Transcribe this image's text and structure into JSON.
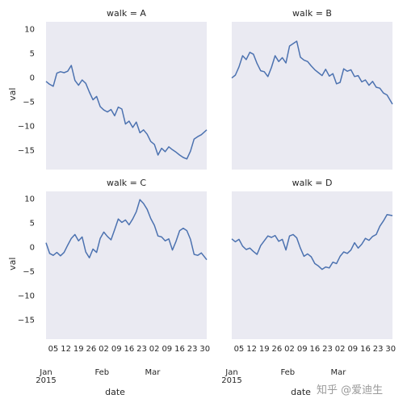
{
  "chart_data": {
    "type": "line",
    "facet_column": "walk",
    "xlabel": "date",
    "ylabel": "val",
    "ylim": [
      -19,
      11.5
    ],
    "y_ticks": [
      10,
      5,
      0,
      -5,
      -10,
      -15
    ],
    "x_range": [
      "2015-01-01",
      "2015-03-31"
    ],
    "x_day_ticks": [
      {
        "date": "2015-01-05",
        "label": "05"
      },
      {
        "date": "2015-01-12",
        "label": "12"
      },
      {
        "date": "2015-01-19",
        "label": "19"
      },
      {
        "date": "2015-01-26",
        "label": "26"
      },
      {
        "date": "2015-02-02",
        "label": "02"
      },
      {
        "date": "2015-02-09",
        "label": "09"
      },
      {
        "date": "2015-02-16",
        "label": "16"
      },
      {
        "date": "2015-02-23",
        "label": "23"
      },
      {
        "date": "2015-03-02",
        "label": "02"
      },
      {
        "date": "2015-03-09",
        "label": "09"
      },
      {
        "date": "2015-03-16",
        "label": "16"
      },
      {
        "date": "2015-03-23",
        "label": "23"
      },
      {
        "date": "2015-03-30",
        "label": "30"
      }
    ],
    "x_month_ticks": [
      {
        "date": "2015-01-01",
        "label": "Jan",
        "sublabel": "2015"
      },
      {
        "date": "2015-02-01",
        "label": "Feb",
        "sublabel": ""
      },
      {
        "date": "2015-03-01",
        "label": "Mar",
        "sublabel": ""
      }
    ],
    "line_color": "#4c72b0",
    "background_color": "#eaeaf2",
    "grid": false,
    "panels": [
      {
        "title": "walk = A",
        "points": [
          [
            "2015-01-01",
            -0.8
          ],
          [
            "2015-01-03",
            -1.4
          ],
          [
            "2015-01-05",
            -1.8
          ],
          [
            "2015-01-07",
            0.9
          ],
          [
            "2015-01-09",
            1.2
          ],
          [
            "2015-01-11",
            1.0
          ],
          [
            "2015-01-13",
            1.3
          ],
          [
            "2015-01-15",
            2.5
          ],
          [
            "2015-01-17",
            -0.6
          ],
          [
            "2015-01-19",
            -1.6
          ],
          [
            "2015-01-21",
            -0.5
          ],
          [
            "2015-01-23",
            -1.2
          ],
          [
            "2015-01-25",
            -3.0
          ],
          [
            "2015-01-27",
            -4.6
          ],
          [
            "2015-01-29",
            -3.9
          ],
          [
            "2015-01-31",
            -6.0
          ],
          [
            "2015-02-02",
            -6.7
          ],
          [
            "2015-02-04",
            -7.1
          ],
          [
            "2015-02-06",
            -6.6
          ],
          [
            "2015-02-08",
            -7.9
          ],
          [
            "2015-02-10",
            -6.1
          ],
          [
            "2015-02-12",
            -6.5
          ],
          [
            "2015-02-14",
            -9.6
          ],
          [
            "2015-02-16",
            -9.0
          ],
          [
            "2015-02-18",
            -10.3
          ],
          [
            "2015-02-20",
            -9.2
          ],
          [
            "2015-02-22",
            -11.4
          ],
          [
            "2015-02-24",
            -10.8
          ],
          [
            "2015-02-26",
            -11.7
          ],
          [
            "2015-02-28",
            -13.2
          ],
          [
            "2015-03-02",
            -13.8
          ],
          [
            "2015-03-04",
            -16.0
          ],
          [
            "2015-03-06",
            -14.6
          ],
          [
            "2015-03-08",
            -15.3
          ],
          [
            "2015-03-10",
            -14.3
          ],
          [
            "2015-03-12",
            -14.9
          ],
          [
            "2015-03-14",
            -15.4
          ],
          [
            "2015-03-16",
            -16.0
          ],
          [
            "2015-03-18",
            -16.5
          ],
          [
            "2015-03-20",
            -16.8
          ],
          [
            "2015-03-22",
            -15.2
          ],
          [
            "2015-03-24",
            -12.7
          ],
          [
            "2015-03-26",
            -12.2
          ],
          [
            "2015-03-28",
            -11.8
          ],
          [
            "2015-03-31",
            -10.8
          ]
        ]
      },
      {
        "title": "walk = B",
        "points": [
          [
            "2015-01-01",
            -0.1
          ],
          [
            "2015-01-03",
            0.5
          ],
          [
            "2015-01-05",
            2.2
          ],
          [
            "2015-01-07",
            4.5
          ],
          [
            "2015-01-09",
            3.7
          ],
          [
            "2015-01-11",
            5.2
          ],
          [
            "2015-01-13",
            4.8
          ],
          [
            "2015-01-15",
            2.9
          ],
          [
            "2015-01-17",
            1.4
          ],
          [
            "2015-01-19",
            1.2
          ],
          [
            "2015-01-21",
            0.2
          ],
          [
            "2015-01-23",
            2.1
          ],
          [
            "2015-01-25",
            4.5
          ],
          [
            "2015-01-27",
            3.3
          ],
          [
            "2015-01-29",
            4.1
          ],
          [
            "2015-01-31",
            3.0
          ],
          [
            "2015-02-02",
            6.5
          ],
          [
            "2015-02-04",
            7.0
          ],
          [
            "2015-02-06",
            7.5
          ],
          [
            "2015-02-08",
            4.2
          ],
          [
            "2015-02-10",
            3.6
          ],
          [
            "2015-02-12",
            3.3
          ],
          [
            "2015-02-14",
            2.4
          ],
          [
            "2015-02-16",
            1.6
          ],
          [
            "2015-02-18",
            1.0
          ],
          [
            "2015-02-20",
            0.4
          ],
          [
            "2015-02-22",
            1.7
          ],
          [
            "2015-02-24",
            0.3
          ],
          [
            "2015-02-26",
            0.8
          ],
          [
            "2015-02-28",
            -1.3
          ],
          [
            "2015-03-02",
            -1.0
          ],
          [
            "2015-03-04",
            1.8
          ],
          [
            "2015-03-06",
            1.3
          ],
          [
            "2015-03-08",
            1.6
          ],
          [
            "2015-03-10",
            0.2
          ],
          [
            "2015-03-12",
            0.4
          ],
          [
            "2015-03-14",
            -0.9
          ],
          [
            "2015-03-16",
            -0.5
          ],
          [
            "2015-03-18",
            -1.6
          ],
          [
            "2015-03-20",
            -0.8
          ],
          [
            "2015-03-22",
            -2.0
          ],
          [
            "2015-03-24",
            -2.2
          ],
          [
            "2015-03-26",
            -3.2
          ],
          [
            "2015-03-28",
            -3.6
          ],
          [
            "2015-03-31",
            -5.5
          ]
        ]
      },
      {
        "title": "walk = C",
        "points": [
          [
            "2015-01-01",
            0.9
          ],
          [
            "2015-01-03",
            -1.3
          ],
          [
            "2015-01-05",
            -1.7
          ],
          [
            "2015-01-07",
            -1.1
          ],
          [
            "2015-01-09",
            -1.8
          ],
          [
            "2015-01-11",
            -1.1
          ],
          [
            "2015-01-13",
            0.4
          ],
          [
            "2015-01-15",
            1.8
          ],
          [
            "2015-01-17",
            2.6
          ],
          [
            "2015-01-19",
            1.3
          ],
          [
            "2015-01-21",
            2.1
          ],
          [
            "2015-01-23",
            -1.0
          ],
          [
            "2015-01-25",
            -2.2
          ],
          [
            "2015-01-27",
            -0.4
          ],
          [
            "2015-01-29",
            -1.1
          ],
          [
            "2015-01-31",
            1.8
          ],
          [
            "2015-02-02",
            3.1
          ],
          [
            "2015-02-04",
            2.2
          ],
          [
            "2015-02-06",
            1.5
          ],
          [
            "2015-02-08",
            3.6
          ],
          [
            "2015-02-10",
            5.8
          ],
          [
            "2015-02-12",
            5.1
          ],
          [
            "2015-02-14",
            5.6
          ],
          [
            "2015-02-16",
            4.6
          ],
          [
            "2015-02-18",
            5.8
          ],
          [
            "2015-02-20",
            7.3
          ],
          [
            "2015-02-22",
            9.8
          ],
          [
            "2015-02-24",
            9.0
          ],
          [
            "2015-02-26",
            7.8
          ],
          [
            "2015-02-28",
            5.9
          ],
          [
            "2015-03-02",
            4.5
          ],
          [
            "2015-03-04",
            2.3
          ],
          [
            "2015-03-06",
            2.1
          ],
          [
            "2015-03-08",
            1.3
          ],
          [
            "2015-03-10",
            1.7
          ],
          [
            "2015-03-12",
            -0.6
          ],
          [
            "2015-03-14",
            1.2
          ],
          [
            "2015-03-16",
            3.4
          ],
          [
            "2015-03-18",
            3.9
          ],
          [
            "2015-03-20",
            3.4
          ],
          [
            "2015-03-22",
            1.6
          ],
          [
            "2015-03-24",
            -1.5
          ],
          [
            "2015-03-26",
            -1.7
          ],
          [
            "2015-03-28",
            -1.2
          ],
          [
            "2015-03-31",
            -2.6
          ]
        ]
      },
      {
        "title": "walk = D",
        "points": [
          [
            "2015-01-01",
            1.7
          ],
          [
            "2015-01-03",
            1.1
          ],
          [
            "2015-01-05",
            1.6
          ],
          [
            "2015-01-07",
            0.2
          ],
          [
            "2015-01-09",
            -0.5
          ],
          [
            "2015-01-11",
            -0.2
          ],
          [
            "2015-01-13",
            -0.9
          ],
          [
            "2015-01-15",
            -1.5
          ],
          [
            "2015-01-17",
            0.3
          ],
          [
            "2015-01-19",
            1.3
          ],
          [
            "2015-01-21",
            2.3
          ],
          [
            "2015-01-23",
            2.0
          ],
          [
            "2015-01-25",
            2.4
          ],
          [
            "2015-01-27",
            1.2
          ],
          [
            "2015-01-29",
            1.6
          ],
          [
            "2015-01-31",
            -0.6
          ],
          [
            "2015-02-02",
            2.3
          ],
          [
            "2015-02-04",
            2.6
          ],
          [
            "2015-02-06",
            1.9
          ],
          [
            "2015-02-08",
            -0.2
          ],
          [
            "2015-02-10",
            -1.9
          ],
          [
            "2015-02-12",
            -1.4
          ],
          [
            "2015-02-14",
            -2.0
          ],
          [
            "2015-02-16",
            -3.4
          ],
          [
            "2015-02-18",
            -3.9
          ],
          [
            "2015-02-20",
            -4.6
          ],
          [
            "2015-02-22",
            -4.1
          ],
          [
            "2015-02-24",
            -4.3
          ],
          [
            "2015-02-26",
            -3.1
          ],
          [
            "2015-02-28",
            -3.4
          ],
          [
            "2015-03-02",
            -1.9
          ],
          [
            "2015-03-04",
            -1.0
          ],
          [
            "2015-03-06",
            -1.3
          ],
          [
            "2015-03-08",
            -0.6
          ],
          [
            "2015-03-10",
            0.9
          ],
          [
            "2015-03-12",
            -0.2
          ],
          [
            "2015-03-14",
            0.6
          ],
          [
            "2015-03-16",
            1.8
          ],
          [
            "2015-03-18",
            1.4
          ],
          [
            "2015-03-20",
            2.2
          ],
          [
            "2015-03-22",
            2.6
          ],
          [
            "2015-03-24",
            4.3
          ],
          [
            "2015-03-26",
            5.4
          ],
          [
            "2015-03-28",
            6.7
          ],
          [
            "2015-03-31",
            6.5
          ]
        ]
      }
    ]
  },
  "watermark": "知乎 @爱迪生"
}
